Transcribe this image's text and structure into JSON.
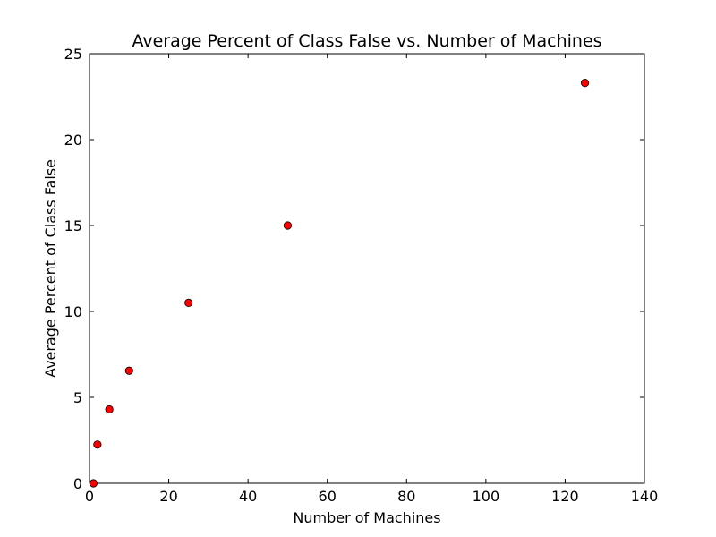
{
  "chart_data": {
    "type": "scatter",
    "title": "Average Percent of Class False vs. Number of Machines",
    "xlabel": "Number of Machines",
    "ylabel": "Average Percent of Class False",
    "xlim": [
      0,
      140
    ],
    "ylim": [
      0,
      25
    ],
    "xticks": [
      0,
      20,
      40,
      60,
      80,
      100,
      120,
      140
    ],
    "yticks": [
      0,
      5,
      10,
      15,
      20,
      25
    ],
    "grid": false,
    "marker_color": "#ff0000",
    "marker_edge_color": "#000000",
    "points": [
      {
        "x": 1,
        "y": 0.0
      },
      {
        "x": 2,
        "y": 2.25
      },
      {
        "x": 5,
        "y": 4.3
      },
      {
        "x": 10,
        "y": 6.55
      },
      {
        "x": 25,
        "y": 10.5
      },
      {
        "x": 50,
        "y": 15.0
      },
      {
        "x": 125,
        "y": 23.3
      }
    ]
  }
}
